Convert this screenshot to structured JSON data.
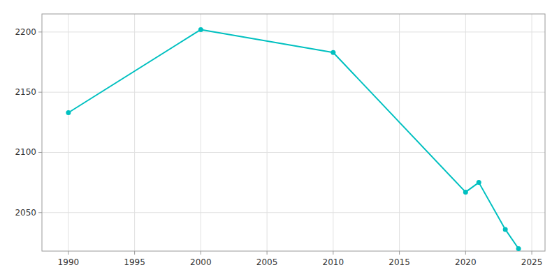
{
  "chart_data": {
    "type": "line",
    "x": [
      1990,
      2000,
      2010,
      2020,
      2021,
      2023,
      2024
    ],
    "values": [
      2133,
      2202,
      2183,
      2067,
      2075,
      2036,
      2020
    ],
    "color": "#00C0C0",
    "marker": "circle",
    "xlim": [
      1988,
      2026
    ],
    "ylim": [
      2018,
      2215
    ],
    "xticks": [
      1990,
      1995,
      2000,
      2005,
      2010,
      2015,
      2020,
      2025
    ],
    "yticks": [
      2050,
      2100,
      2150,
      2200
    ],
    "grid": true
  }
}
